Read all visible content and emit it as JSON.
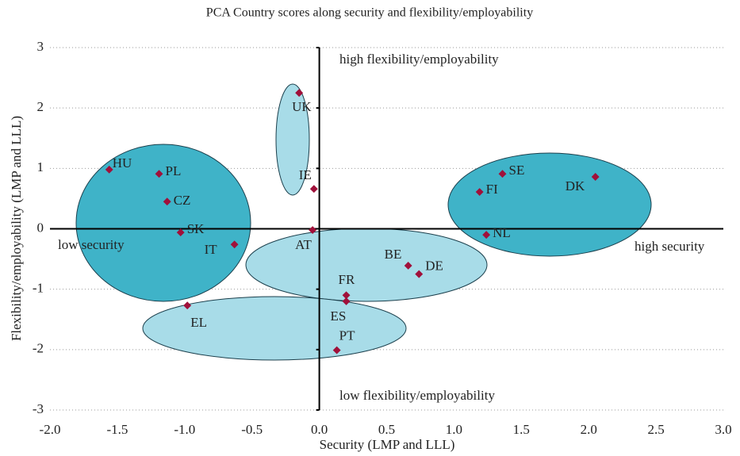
{
  "chart_data": {
    "type": "scatter",
    "title": "PCA Country scores along security and flexibility/employability",
    "x_label": "Security (LMP and LLL)",
    "y_label": "Flexibility/employability (LMP and LLL)",
    "annotations": [
      "high flexibility/employability",
      "low flexibility/employability",
      "low security",
      "high security"
    ],
    "xlim": [
      -2.0,
      3.0
    ],
    "xticks": [
      {
        "value": -2,
        "label": "-2.0"
      },
      -1.5,
      {
        "value": -1,
        "label": "-1.0"
      },
      -0.5,
      {
        "value": 0,
        "label": "0.0"
      },
      0.5,
      {
        "value": 1,
        "label": "1.0"
      },
      1.5,
      {
        "value": 2,
        "label": "2.0"
      },
      2.5,
      {
        "value": 3,
        "label": "3.0"
      }
    ],
    "ylim": [
      -3,
      3
    ],
    "yticks": [
      -3,
      -2,
      -1,
      0,
      1,
      2,
      3
    ],
    "grid": true,
    "series": [
      {
        "color": "#a0103a",
        "labels": [
          "HU",
          "PL",
          "CZ",
          "SK",
          "IT",
          "UK",
          "IE",
          "AT",
          "BE",
          "DE",
          "FR",
          "ES",
          "PT",
          "EL",
          "SE",
          "FI",
          "DK",
          "NL"
        ],
        "x": [
          -1.56,
          -1.19,
          -1.13,
          -1.03,
          -0.63,
          -0.15,
          -0.04,
          -0.05,
          0.66,
          0.74,
          0.2,
          0.2,
          0.13,
          -0.98,
          1.36,
          1.19,
          2.05,
          1.24
        ],
        "values": [
          0.98,
          0.91,
          0.45,
          -0.06,
          -0.26,
          2.25,
          0.66,
          -0.02,
          -0.61,
          -0.75,
          -1.1,
          -1.2,
          -2.01,
          -1.27,
          0.91,
          0.61,
          0.86,
          -0.1
        ]
      }
    ]
  }
}
